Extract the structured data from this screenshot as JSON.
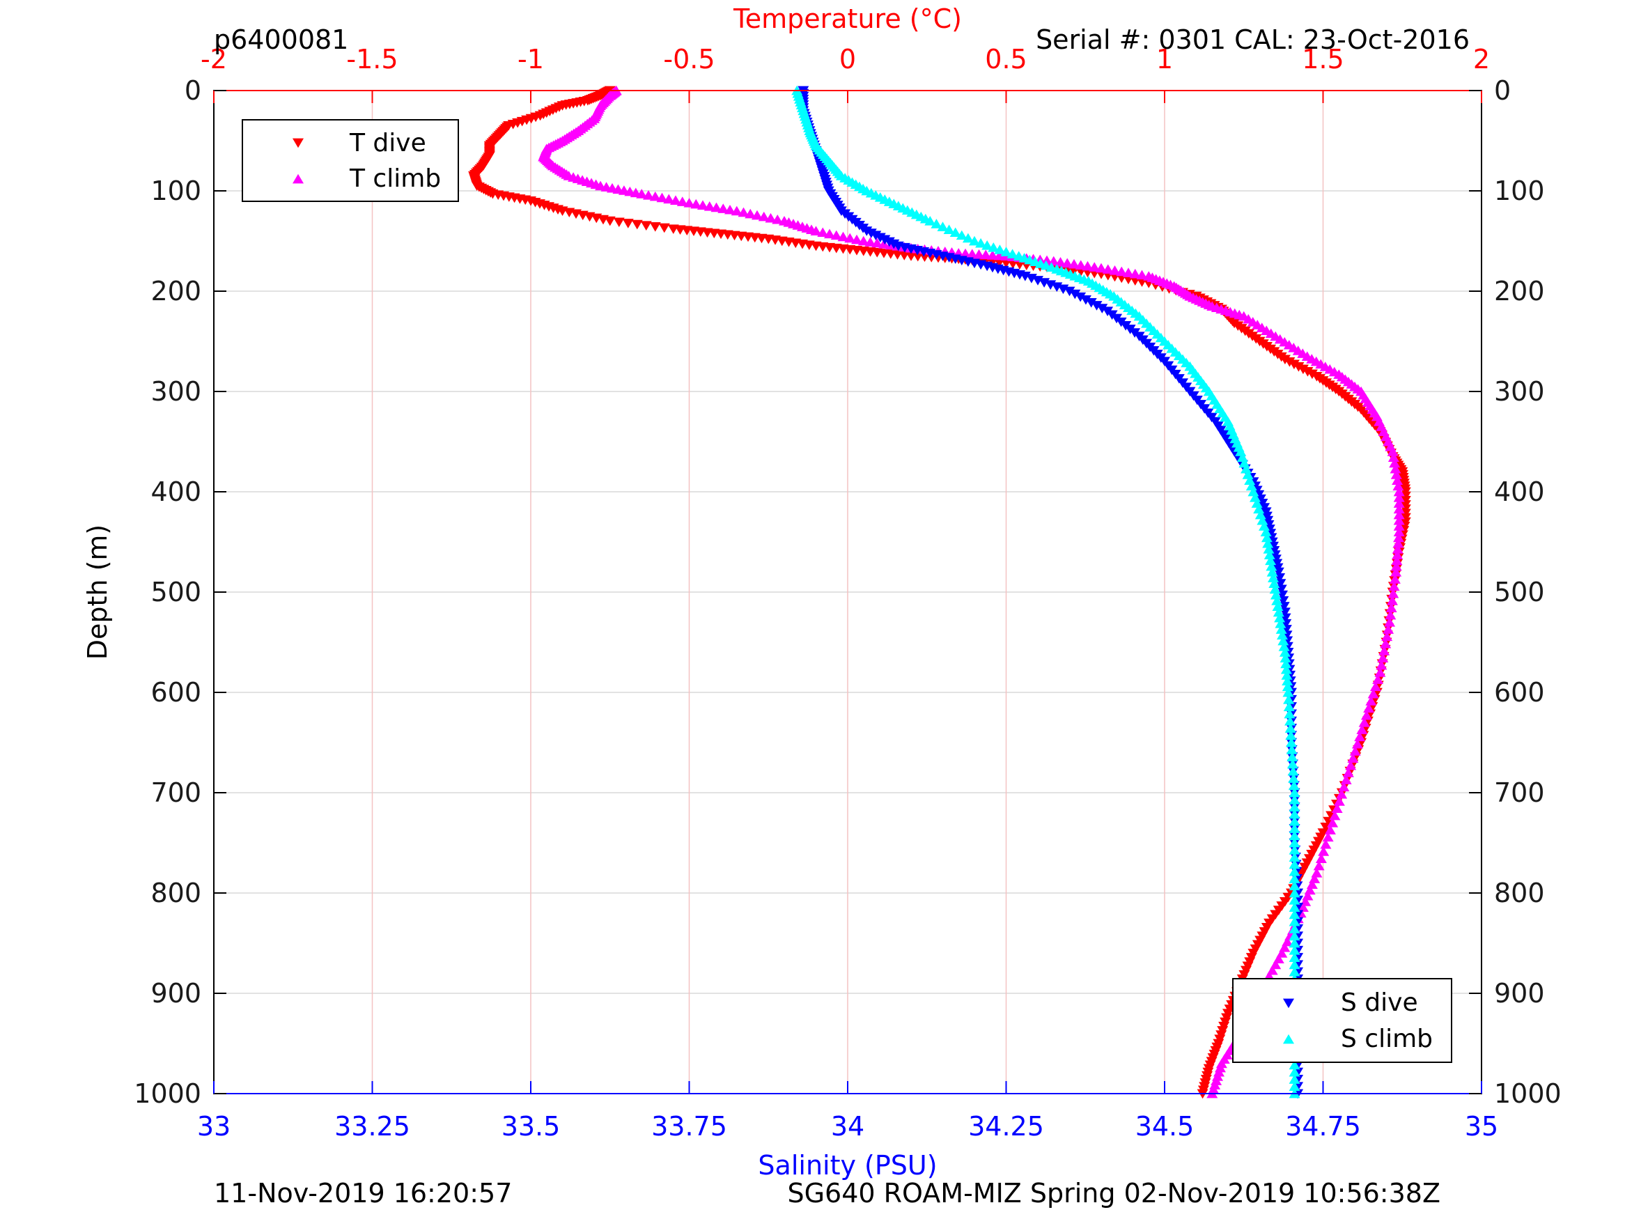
{
  "header": {
    "profile_id": "p6400081",
    "serial_cal": "Serial #: 0301  CAL: 23-Oct-2016"
  },
  "footer": {
    "plot_timestamp": "11-Nov-2019 16:20:57",
    "mission": "SG640 ROAM-MIZ Spring 02-Nov-2019 10:56:38Z"
  },
  "colors": {
    "temperature_axis": "#ff0000",
    "salinity_axis": "#0000ff",
    "t_dive": "#ff0000",
    "t_climb": "#ff00ff",
    "s_dive": "#0000ff",
    "s_climb": "#00ffff",
    "grid_temperature": "#f4c2c2",
    "grid_depth": "#d9d9d9"
  },
  "chart_data": {
    "type": "scatter",
    "y_axis": {
      "label": "Depth (m)",
      "range": [
        0,
        1000
      ],
      "reversed": true,
      "ticks": [
        0,
        100,
        200,
        300,
        400,
        500,
        600,
        700,
        800,
        900,
        1000
      ],
      "tick_labels": [
        "0",
        "100",
        "200",
        "300",
        "400",
        "500",
        "600",
        "700",
        "800",
        "900",
        "1000"
      ],
      "shown_left_and_right": true
    },
    "x_axis_top": {
      "label": "Temperature (°C)",
      "range": [
        -2,
        2
      ],
      "ticks": [
        -2,
        -1.5,
        -1,
        -0.5,
        0,
        0.5,
        1,
        1.5,
        2
      ],
      "tick_labels": [
        "-2",
        "-1.5",
        "-1",
        "-0.5",
        "0",
        "0.5",
        "1",
        "1.5",
        "2"
      ]
    },
    "x_axis_bottom": {
      "label": "Salinity (PSU)",
      "range": [
        33,
        35
      ],
      "ticks": [
        33,
        33.25,
        33.5,
        33.75,
        34,
        34.25,
        34.5,
        34.75,
        35
      ],
      "tick_labels": [
        "33",
        "33.25",
        "33.5",
        "33.75",
        "34",
        "34.25",
        "34.5",
        "34.75",
        "35"
      ]
    },
    "grid": true,
    "legend_temperature": {
      "placement": "top-left",
      "entries": [
        "T dive",
        "T climb"
      ]
    },
    "legend_salinity": {
      "placement": "bottom-right",
      "entries": [
        "S dive",
        "S climb"
      ]
    },
    "series": [
      {
        "name": "T dive",
        "axis": "temperature",
        "marker": "triangle-down",
        "points": [
          [
            -0.75,
            0
          ],
          [
            -0.78,
            5
          ],
          [
            -0.82,
            10
          ],
          [
            -0.9,
            15
          ],
          [
            -0.97,
            25
          ],
          [
            -1.07,
            35
          ],
          [
            -1.1,
            45
          ],
          [
            -1.13,
            55
          ],
          [
            -1.13,
            65
          ],
          [
            -1.15,
            75
          ],
          [
            -1.18,
            85
          ],
          [
            -1.17,
            95
          ],
          [
            -1.12,
            103
          ],
          [
            -1.0,
            110
          ],
          [
            -0.9,
            120
          ],
          [
            -0.75,
            130
          ],
          [
            -0.55,
            138
          ],
          [
            -0.4,
            143
          ],
          [
            -0.25,
            148
          ],
          [
            -0.1,
            155
          ],
          [
            0.05,
            160
          ],
          [
            0.2,
            165
          ],
          [
            0.35,
            168
          ],
          [
            0.5,
            172
          ],
          [
            0.65,
            177
          ],
          [
            0.8,
            183
          ],
          [
            0.95,
            192
          ],
          [
            1.1,
            205
          ],
          [
            1.18,
            218
          ],
          [
            1.22,
            232
          ],
          [
            1.3,
            250
          ],
          [
            1.38,
            268
          ],
          [
            1.48,
            285
          ],
          [
            1.55,
            300
          ],
          [
            1.62,
            318
          ],
          [
            1.68,
            340
          ],
          [
            1.72,
            365
          ],
          [
            1.75,
            380
          ],
          [
            1.76,
            400
          ],
          [
            1.76,
            430
          ],
          [
            1.74,
            460
          ],
          [
            1.72,
            500
          ],
          [
            1.7,
            550
          ],
          [
            1.67,
            600
          ],
          [
            1.62,
            650
          ],
          [
            1.56,
            700
          ],
          [
            1.5,
            740
          ],
          [
            1.45,
            770
          ],
          [
            1.4,
            800
          ],
          [
            1.33,
            830
          ],
          [
            1.28,
            860
          ],
          [
            1.24,
            890
          ],
          [
            1.2,
            920
          ],
          [
            1.17,
            950
          ],
          [
            1.14,
            975
          ],
          [
            1.12,
            1000
          ]
        ]
      },
      {
        "name": "T climb",
        "axis": "temperature",
        "marker": "triangle-up",
        "points": [
          [
            -0.73,
            0
          ],
          [
            -0.75,
            5
          ],
          [
            -0.78,
            15
          ],
          [
            -0.8,
            28
          ],
          [
            -0.85,
            40
          ],
          [
            -0.9,
            50
          ],
          [
            -0.95,
            58
          ],
          [
            -0.96,
            66
          ],
          [
            -0.93,
            75
          ],
          [
            -0.88,
            85
          ],
          [
            -0.78,
            95
          ],
          [
            -0.65,
            103
          ],
          [
            -0.5,
            112
          ],
          [
            -0.35,
            120
          ],
          [
            -0.2,
            130
          ],
          [
            -0.1,
            140
          ],
          [
            0.05,
            150
          ],
          [
            0.2,
            157
          ],
          [
            0.35,
            162
          ],
          [
            0.5,
            165
          ],
          [
            0.65,
            170
          ],
          [
            0.8,
            177
          ],
          [
            0.95,
            185
          ],
          [
            1.03,
            195
          ],
          [
            1.08,
            205
          ],
          [
            1.15,
            215
          ],
          [
            1.25,
            225
          ],
          [
            1.35,
            245
          ],
          [
            1.45,
            265
          ],
          [
            1.55,
            283
          ],
          [
            1.62,
            300
          ],
          [
            1.67,
            325
          ],
          [
            1.72,
            360
          ],
          [
            1.74,
            400
          ],
          [
            1.74,
            440
          ],
          [
            1.73,
            480
          ],
          [
            1.71,
            530
          ],
          [
            1.68,
            580
          ],
          [
            1.63,
            630
          ],
          [
            1.58,
            680
          ],
          [
            1.53,
            730
          ],
          [
            1.48,
            780
          ],
          [
            1.43,
            820
          ],
          [
            1.37,
            860
          ],
          [
            1.3,
            900
          ],
          [
            1.24,
            940
          ],
          [
            1.18,
            970
          ],
          [
            1.15,
            1000
          ]
        ]
      },
      {
        "name": "S dive",
        "axis": "salinity",
        "marker": "triangle-down",
        "points": [
          [
            33.93,
            0
          ],
          [
            33.93,
            20
          ],
          [
            33.94,
            40
          ],
          [
            33.95,
            60
          ],
          [
            33.96,
            80
          ],
          [
            33.97,
            100
          ],
          [
            33.99,
            120
          ],
          [
            34.03,
            140
          ],
          [
            34.08,
            155
          ],
          [
            34.15,
            165
          ],
          [
            34.22,
            175
          ],
          [
            34.28,
            185
          ],
          [
            34.35,
            200
          ],
          [
            34.41,
            220
          ],
          [
            34.46,
            245
          ],
          [
            34.5,
            270
          ],
          [
            34.54,
            300
          ],
          [
            34.58,
            330
          ],
          [
            34.61,
            360
          ],
          [
            34.64,
            390
          ],
          [
            34.66,
            420
          ],
          [
            34.67,
            450
          ],
          [
            34.68,
            480
          ],
          [
            34.69,
            520
          ],
          [
            34.695,
            560
          ],
          [
            34.7,
            600
          ],
          [
            34.7,
            650
          ],
          [
            34.705,
            700
          ],
          [
            34.705,
            750
          ],
          [
            34.71,
            800
          ],
          [
            34.71,
            850
          ],
          [
            34.71,
            900
          ],
          [
            34.71,
            950
          ],
          [
            34.71,
            1000
          ]
        ]
      },
      {
        "name": "S climb",
        "axis": "salinity",
        "marker": "triangle-up",
        "points": [
          [
            33.92,
            0
          ],
          [
            33.93,
            20
          ],
          [
            33.94,
            40
          ],
          [
            33.95,
            55
          ],
          [
            33.97,
            70
          ],
          [
            33.99,
            85
          ],
          [
            34.03,
            100
          ],
          [
            34.08,
            115
          ],
          [
            34.13,
            130
          ],
          [
            34.2,
            150
          ],
          [
            34.27,
            165
          ],
          [
            34.33,
            178
          ],
          [
            34.38,
            190
          ],
          [
            34.42,
            205
          ],
          [
            34.46,
            225
          ],
          [
            34.5,
            250
          ],
          [
            34.54,
            275
          ],
          [
            34.57,
            300
          ],
          [
            34.6,
            330
          ],
          [
            34.62,
            360
          ],
          [
            34.64,
            400
          ],
          [
            34.66,
            440
          ],
          [
            34.67,
            480
          ],
          [
            34.68,
            520
          ],
          [
            34.69,
            560
          ],
          [
            34.695,
            600
          ],
          [
            34.7,
            650
          ],
          [
            34.705,
            700
          ],
          [
            34.705,
            750
          ],
          [
            34.705,
            800
          ],
          [
            34.705,
            850
          ],
          [
            34.705,
            900
          ],
          [
            34.705,
            950
          ],
          [
            34.705,
            1000
          ]
        ]
      }
    ]
  }
}
